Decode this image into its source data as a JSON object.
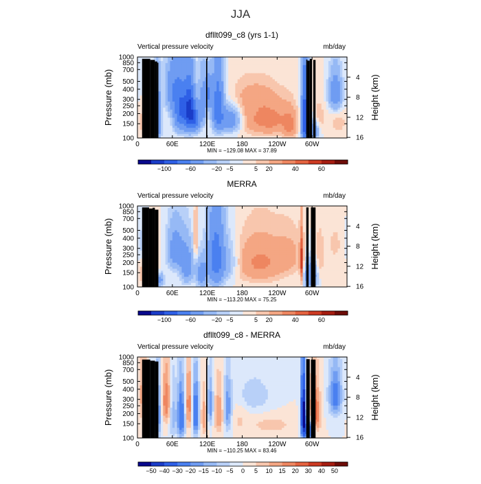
{
  "page_title": "JJA",
  "colors": {
    "ramp_full": [
      "#08088c",
      "#1a3cc8",
      "#2e5fe6",
      "#4a80f0",
      "#6f9cf2",
      "#96b9f5",
      "#b8d0f8",
      "#dce8fb",
      "#fbe4d6",
      "#f8c6ad",
      "#f4a683",
      "#ee8660",
      "#e4623f",
      "#cc3a22",
      "#a51c10",
      "#6e0c08"
    ],
    "ramp_neg": [
      "#08088c",
      "#1a3cc8",
      "#2e5fe6",
      "#4a80f0",
      "#6f9cf2",
      "#96b9f5",
      "#b8d0f8",
      "#dce8fb"
    ],
    "ramp_pos": [
      "#fbe4d6",
      "#f8c6ad",
      "#f4a683",
      "#ee8660",
      "#e4623f",
      "#cc3a22",
      "#a51c10",
      "#6e0c08"
    ],
    "topography": "#000000"
  },
  "chart_data": [
    {
      "type": "heatmap",
      "title": "dfllt099_c8 (yrs 1-1)",
      "left_label": "Vertical pressure velocity",
      "units": "mb/day",
      "ylabel": "Pressure (mb)",
      "ylabel_right": "Height (km)",
      "pressure_ticks": [
        "100",
        "150",
        "200",
        "250",
        "300",
        "400",
        "500",
        "700",
        "850",
        "1000"
      ],
      "pressure_values": [
        100,
        150,
        200,
        250,
        300,
        400,
        500,
        700,
        850,
        1000
      ],
      "height_ticks": [
        "16",
        "12",
        "8",
        "4"
      ],
      "height_values": [
        16,
        12,
        8,
        4
      ],
      "lon_ticks": [
        "0",
        "60E",
        "120E",
        "180",
        "120W",
        "60W"
      ],
      "lon_values": [
        0,
        60,
        120,
        180,
        240,
        300
      ],
      "xlim": [
        0,
        360
      ],
      "ylim": [
        1000,
        100
      ],
      "stats": "MIN = −129.08   MAX =   37.89",
      "colorbar_labels": [
        "−100",
        "−60",
        "−20",
        "−5",
        "5",
        "20",
        "40",
        "60"
      ],
      "colorbar_levels": [
        -120,
        -100,
        -80,
        -60,
        -40,
        -20,
        -10,
        -5,
        0,
        5,
        10,
        20,
        30,
        40,
        50,
        60,
        70
      ],
      "fields": [
        {
          "lon": 12,
          "p": 650,
          "sl": 5,
          "sp": 170,
          "a": 14
        },
        {
          "lon": 28,
          "p": 700,
          "sl": 4,
          "sp": 200,
          "a": 20
        },
        {
          "lon": 35,
          "p": 600,
          "sl": 4,
          "sp": 300,
          "a": -45
        },
        {
          "lon": 18,
          "p": 180,
          "sl": 8,
          "sp": 70,
          "a": -8
        },
        {
          "lon": 60,
          "p": 250,
          "sl": 9,
          "sp": 130,
          "a": -30
        },
        {
          "lon": 75,
          "p": 450,
          "sl": 9,
          "sp": 230,
          "a": -60
        },
        {
          "lon": 90,
          "p": 450,
          "sl": 6,
          "sp": 220,
          "a": -75
        },
        {
          "lon": 100,
          "p": 600,
          "sl": 5,
          "sp": 150,
          "a": -50
        },
        {
          "lon": 112,
          "p": 400,
          "sl": 5,
          "sp": 200,
          "a": -30
        },
        {
          "lon": 122,
          "p": 280,
          "sl": 4,
          "sp": 90,
          "a": -40
        },
        {
          "lon": 138,
          "p": 400,
          "sl": 7,
          "sp": 260,
          "a": -55
        },
        {
          "lon": 160,
          "p": 600,
          "sl": 14,
          "sp": 160,
          "a": -40
        },
        {
          "lon": 180,
          "p": 550,
          "sl": 30,
          "sp": 220,
          "a": 12
        },
        {
          "lon": 230,
          "p": 600,
          "sl": 25,
          "sp": 200,
          "a": 22
        },
        {
          "lon": 200,
          "p": 300,
          "sl": 30,
          "sp": 90,
          "a": 8
        },
        {
          "lon": 262,
          "p": 700,
          "sl": 8,
          "sp": 200,
          "a": 18
        },
        {
          "lon": 288,
          "p": 550,
          "sl": 4,
          "sp": 400,
          "a": -80
        },
        {
          "lon": 300,
          "p": 800,
          "sl": 8,
          "sp": 150,
          "a": -40
        },
        {
          "lon": 312,
          "p": 600,
          "sl": 8,
          "sp": 200,
          "a": 10
        },
        {
          "lon": 340,
          "p": 280,
          "sl": 8,
          "sp": 110,
          "a": -35
        },
        {
          "lon": 345,
          "p": 650,
          "sl": 10,
          "sp": 150,
          "a": 8
        }
      ],
      "topo": [
        [
          8,
          22,
          950
        ],
        [
          22,
          30,
          920
        ],
        [
          30,
          34,
          880
        ],
        [
          34,
          36,
          850
        ],
        [
          118,
          120,
          950
        ],
        [
          290,
          292,
          930
        ],
        [
          292,
          296,
          900
        ],
        [
          296,
          300,
          950
        ],
        [
          302,
          306,
          920
        ]
      ]
    },
    {
      "type": "heatmap",
      "title": "MERRA",
      "left_label": "Vertical pressure velocity",
      "units": "mb/day",
      "ylabel": "Pressure (mb)",
      "ylabel_right": "Height (km)",
      "pressure_ticks": [
        "100",
        "150",
        "200",
        "250",
        "300",
        "400",
        "500",
        "700",
        "850",
        "1000"
      ],
      "pressure_values": [
        100,
        150,
        200,
        250,
        300,
        400,
        500,
        700,
        850,
        1000
      ],
      "height_ticks": [
        "16",
        "12",
        "8",
        "4"
      ],
      "height_values": [
        16,
        12,
        8,
        4
      ],
      "lon_ticks": [
        "0",
        "60E",
        "120E",
        "180",
        "120W",
        "60W"
      ],
      "lon_values": [
        0,
        60,
        120,
        180,
        240,
        300
      ],
      "xlim": [
        0,
        360
      ],
      "ylim": [
        1000,
        100
      ],
      "stats": "MIN = −113.20   MAX =   75.25",
      "colorbar_labels": [
        "−100",
        "−60",
        "−20",
        "−5",
        "5",
        "20",
        "40",
        "60"
      ],
      "colorbar_levels": [
        -120,
        -100,
        -80,
        -60,
        -40,
        -20,
        -10,
        -5,
        0,
        5,
        10,
        20,
        30,
        40,
        50,
        60,
        70
      ],
      "fields": [
        {
          "lon": 15,
          "p": 700,
          "sl": 6,
          "sp": 180,
          "a": 22
        },
        {
          "lon": 28,
          "p": 620,
          "sl": 6,
          "sp": 240,
          "a": 28
        },
        {
          "lon": 12,
          "p": 300,
          "sl": 10,
          "sp": 120,
          "a": -10
        },
        {
          "lon": 38,
          "p": 820,
          "sl": 5,
          "sp": 120,
          "a": -30
        },
        {
          "lon": 65,
          "p": 350,
          "sl": 10,
          "sp": 160,
          "a": -30
        },
        {
          "lon": 85,
          "p": 550,
          "sl": 8,
          "sp": 220,
          "a": -30
        },
        {
          "lon": 100,
          "p": 250,
          "sl": 2,
          "sp": 130,
          "a": 18
        },
        {
          "lon": 110,
          "p": 700,
          "sl": 6,
          "sp": 200,
          "a": -30
        },
        {
          "lon": 135,
          "p": 450,
          "sl": 10,
          "sp": 300,
          "a": -55
        },
        {
          "lon": 160,
          "p": 500,
          "sl": 10,
          "sp": 200,
          "a": -15
        },
        {
          "lon": 210,
          "p": 500,
          "sl": 30,
          "sp": 230,
          "a": 22
        },
        {
          "lon": 262,
          "p": 400,
          "sl": 18,
          "sp": 180,
          "a": 10
        },
        {
          "lon": 282,
          "p": 500,
          "sl": 2,
          "sp": 230,
          "a": 45
        },
        {
          "lon": 298,
          "p": 720,
          "sl": 8,
          "sp": 200,
          "a": -40
        },
        {
          "lon": 312,
          "p": 500,
          "sl": 6,
          "sp": 250,
          "a": 10
        },
        {
          "lon": 340,
          "p": 300,
          "sl": 14,
          "sp": 150,
          "a": 6
        }
      ],
      "topo": [
        [
          8,
          20,
          960
        ],
        [
          20,
          26,
          930
        ],
        [
          26,
          30,
          950
        ],
        [
          30,
          36,
          900
        ],
        [
          118,
          120,
          960
        ],
        [
          290,
          294,
          960
        ],
        [
          298,
          306,
          960
        ]
      ]
    },
    {
      "type": "heatmap",
      "title": "dfllt099_c8 - MERRA",
      "left_label": "Vertical pressure velocity",
      "units": "mb/day",
      "ylabel": "Pressure (mb)",
      "ylabel_right": "Height (km)",
      "pressure_ticks": [
        "100",
        "150",
        "200",
        "250",
        "300",
        "400",
        "500",
        "700",
        "850",
        "1000"
      ],
      "pressure_values": [
        100,
        150,
        200,
        250,
        300,
        400,
        500,
        700,
        850,
        1000
      ],
      "height_ticks": [
        "16",
        "12",
        "8",
        "4"
      ],
      "height_values": [
        16,
        12,
        8,
        4
      ],
      "lon_ticks": [
        "0",
        "60E",
        "120E",
        "180",
        "120W",
        "60W"
      ],
      "lon_values": [
        0,
        60,
        120,
        180,
        240,
        300
      ],
      "xlim": [
        0,
        360
      ],
      "ylim": [
        1000,
        100
      ],
      "stats": "MIN = −110.25   MAX =   83.46",
      "colorbar_labels": [
        "−50",
        "−40",
        "−30",
        "−20",
        "−15",
        "−10",
        "−5",
        "0",
        "5",
        "10",
        "15",
        "20",
        "30",
        "40",
        "50"
      ],
      "colorbar_levels": [
        -60,
        -50,
        -40,
        -30,
        -20,
        -15,
        -10,
        -5,
        0,
        5,
        10,
        15,
        20,
        30,
        40,
        50,
        60
      ],
      "fields": [
        {
          "lon": 10,
          "p": 300,
          "sl": 5,
          "sp": 200,
          "a": 15
        },
        {
          "lon": 20,
          "p": 700,
          "sl": 4,
          "sp": 250,
          "a": -20
        },
        {
          "lon": 35,
          "p": 500,
          "sl": 4,
          "sp": 300,
          "a": -25
        },
        {
          "lon": 50,
          "p": 350,
          "sl": 6,
          "sp": 200,
          "a": 20
        },
        {
          "lon": 60,
          "p": 500,
          "sl": 4,
          "sp": 300,
          "a": -15
        },
        {
          "lon": 75,
          "p": 550,
          "sl": 5,
          "sp": 300,
          "a": -30
        },
        {
          "lon": 88,
          "p": 400,
          "sl": 4,
          "sp": 250,
          "a": 20
        },
        {
          "lon": 100,
          "p": 500,
          "sl": 4,
          "sp": 280,
          "a": -30
        },
        {
          "lon": 115,
          "p": 550,
          "sl": 4,
          "sp": 250,
          "a": 15
        },
        {
          "lon": 125,
          "p": 400,
          "sl": 4,
          "sp": 200,
          "a": -20
        },
        {
          "lon": 140,
          "p": 500,
          "sl": 6,
          "sp": 250,
          "a": 15
        },
        {
          "lon": 155,
          "p": 450,
          "sl": 5,
          "sp": 250,
          "a": -20
        },
        {
          "lon": 175,
          "p": 600,
          "sl": 10,
          "sp": 200,
          "a": 5
        },
        {
          "lon": 200,
          "p": 300,
          "sl": 20,
          "sp": 100,
          "a": -10
        },
        {
          "lon": 230,
          "p": 700,
          "sl": 25,
          "sp": 120,
          "a": 8
        },
        {
          "lon": 285,
          "p": 500,
          "sl": 3,
          "sp": 300,
          "a": -60
        },
        {
          "lon": 295,
          "p": 800,
          "sl": 6,
          "sp": 150,
          "a": -40
        },
        {
          "lon": 305,
          "p": 500,
          "sl": 6,
          "sp": 250,
          "a": 25
        },
        {
          "lon": 340,
          "p": 300,
          "sl": 8,
          "sp": 150,
          "a": -25
        }
      ],
      "topo": [
        [
          8,
          22,
          930
        ],
        [
          22,
          30,
          900
        ],
        [
          30,
          36,
          880
        ],
        [
          118,
          120,
          950
        ],
        [
          290,
          296,
          940
        ],
        [
          298,
          306,
          930
        ]
      ]
    }
  ]
}
